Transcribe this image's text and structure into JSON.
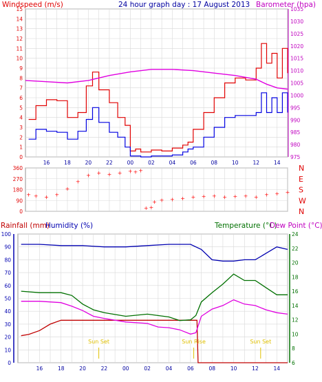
{
  "header": {
    "left": "Windspeed (m/s)",
    "center": "24 hour graph day : 17 August 2013",
    "right": "Barometer (hpa)"
  },
  "bottom_header": {
    "rainfall": "Rainfall (mm)",
    "humidity": "Humidity (%)",
    "temperature": "Temperature (°C)",
    "dewpoint": "Dew Point (°C)"
  },
  "colors": {
    "wind_gust": "#e00000",
    "wind_avg": "#0000e0",
    "barometer": "#e000e0",
    "direction": "#ff0000",
    "rain": "#c00000",
    "humidity": "#0000b0",
    "temperature": "#007000",
    "dewpoint": "#e000e0",
    "sun": "#e0c000",
    "grid": "#d8d8d8"
  },
  "chart_data": [
    {
      "type": "line",
      "id": "wind_baro",
      "title": "24 hour graph day : 17 August 2013",
      "x_ticks": [
        "16",
        "18",
        "20",
        "22",
        "00",
        "02",
        "04",
        "06",
        "08",
        "10",
        "12",
        "14",
        "16",
        "18",
        "20",
        "22",
        "00"
      ],
      "xlim": [
        14,
        39
      ],
      "ylabel_left": "Windspeed (m/s)",
      "ylim_left": [
        0,
        15
      ],
      "yticks_left": [
        "0",
        "1",
        "2",
        "3",
        "4",
        "5",
        "6",
        "7",
        "8",
        "9",
        "10",
        "11",
        "12",
        "13",
        "14",
        "15"
      ],
      "ylabel_right": "Barometer (hpa)",
      "ylim_right": [
        975,
        1035
      ],
      "yticks_right": [
        "975",
        "980",
        "985",
        "990",
        "995",
        "1000",
        "1005",
        "1010",
        "1015",
        "1020",
        "1025",
        "1030",
        "1035"
      ],
      "series": [
        {
          "name": "gust",
          "axis": "left",
          "x": [
            14.3,
            15,
            16,
            17,
            18,
            19,
            19.8,
            20.4,
            21,
            22,
            22.8,
            23.5,
            24,
            24.5,
            25,
            26,
            27,
            28,
            29,
            29.5,
            30,
            31,
            32,
            33,
            34,
            35,
            36,
            36.5,
            37,
            37.5,
            38,
            38.5,
            39
          ],
          "y": [
            3.8,
            5.2,
            5.8,
            5.7,
            4.0,
            4.5,
            7.2,
            8.6,
            6.8,
            5.5,
            4.0,
            3.2,
            0.6,
            0.8,
            0.5,
            0.7,
            0.6,
            0.9,
            1.2,
            1.5,
            2.8,
            4.5,
            6.0,
            7.5,
            8.0,
            7.8,
            9.0,
            11.5,
            9.5,
            10.5,
            8.0,
            11.0,
            8.5
          ]
        },
        {
          "name": "average",
          "axis": "left",
          "x": [
            14.3,
            15,
            16,
            17,
            18,
            19,
            19.8,
            20.4,
            21,
            22,
            22.8,
            23.5,
            24,
            24.5,
            25,
            26,
            27,
            28,
            29,
            29.5,
            30,
            31,
            32,
            33,
            34,
            35,
            36,
            36.5,
            37,
            37.5,
            38,
            38.5,
            39
          ],
          "y": [
            1.8,
            2.8,
            2.6,
            2.5,
            1.8,
            2.6,
            3.8,
            5.0,
            3.5,
            2.5,
            2.0,
            1.0,
            0.1,
            0.1,
            0.0,
            0.1,
            0.1,
            0.2,
            0.5,
            0.8,
            1.0,
            2.0,
            3.0,
            4.0,
            4.2,
            4.2,
            4.5,
            6.5,
            4.5,
            6.0,
            4.5,
            6.5,
            4.5
          ]
        },
        {
          "name": "barometer",
          "axis": "right",
          "x": [
            14,
            16,
            18,
            20,
            22,
            24,
            26,
            28,
            30,
            32,
            34,
            36,
            37,
            38,
            39
          ],
          "y": [
            1006.0,
            1005.5,
            1005.0,
            1006.0,
            1008.0,
            1009.5,
            1010.5,
            1010.5,
            1010.0,
            1009.0,
            1008.0,
            1006.5,
            1004.5,
            1003.0,
            1002.5
          ]
        }
      ]
    },
    {
      "type": "scatter",
      "id": "wind_direction",
      "ylim": [
        0,
        360
      ],
      "yticks": [
        "0",
        "90",
        "180",
        "270",
        "360"
      ],
      "compass": [
        "N",
        "W",
        "S",
        "E",
        "N"
      ],
      "series": [
        {
          "name": "direction",
          "x": [
            14.3,
            15,
            16,
            17,
            18,
            19,
            20,
            21,
            22,
            23,
            24,
            24.5,
            25,
            25.5,
            26,
            26.3,
            27,
            28,
            29,
            30,
            31,
            32,
            33,
            34,
            35,
            36,
            37,
            38,
            39
          ],
          "y": [
            140,
            130,
            120,
            140,
            190,
            250,
            300,
            320,
            310,
            320,
            335,
            330,
            340,
            30,
            35,
            80,
            95,
            100,
            110,
            120,
            125,
            130,
            120,
            125,
            130,
            120,
            140,
            150,
            160
          ]
        }
      ]
    },
    {
      "type": "line",
      "id": "temp_hum_rain",
      "ylabel_left": "Rainfall (mm)",
      "ylabel_left2": "Humidity (%)",
      "ylim_left": [
        0,
        100
      ],
      "yticks_left": [
        "0",
        "10",
        "20",
        "30",
        "40",
        "50",
        "60",
        "70",
        "80",
        "90",
        "100"
      ],
      "ylabel_right": "Temperature (°C)",
      "ylim_right": [
        6,
        24
      ],
      "yticks_right": [
        "6",
        "8",
        "10",
        "12",
        "14",
        "16",
        "18",
        "20",
        "22",
        "24"
      ],
      "annotations": [
        {
          "text": "Sun Set",
          "x": 21.5
        },
        {
          "text": "Sun Rise",
          "x": 30.3
        },
        {
          "text": "Sun Set",
          "x": 36.5
        }
      ],
      "series": [
        {
          "name": "rainfall",
          "axis": "left",
          "x": [
            14.3,
            15,
            16,
            17,
            18,
            19,
            20,
            21,
            22,
            23,
            24,
            25,
            26,
            27,
            28,
            29,
            30,
            30.6,
            30.7,
            31,
            32,
            34,
            36,
            38,
            39
          ],
          "y": [
            21,
            22,
            25,
            30,
            33,
            33,
            33,
            33,
            33,
            33,
            33,
            33,
            33,
            33,
            33,
            33,
            33,
            33,
            0,
            0,
            0,
            0,
            0,
            0,
            0
          ]
        },
        {
          "name": "humidity",
          "axis": "left",
          "x": [
            14.3,
            16,
            18,
            20,
            22,
            24,
            26,
            28,
            30,
            31,
            32,
            33,
            34,
            35,
            36,
            37,
            38,
            39
          ],
          "y": [
            92,
            92,
            91,
            91,
            90,
            90,
            91,
            92,
            92,
            88,
            80,
            79,
            79,
            80,
            80,
            85,
            90,
            88
          ]
        },
        {
          "name": "temperature",
          "axis": "right",
          "x": [
            14.3,
            16,
            18,
            19,
            20,
            21,
            22,
            24,
            26,
            28,
            29,
            30,
            30.5,
            31,
            32,
            33,
            34,
            35,
            36,
            37,
            38,
            39
          ],
          "y": [
            16.0,
            15.8,
            15.8,
            15.4,
            14.2,
            13.4,
            13.0,
            12.5,
            12.8,
            12.4,
            11.9,
            12.0,
            12.6,
            14.5,
            15.8,
            17.0,
            18.4,
            17.5,
            17.5,
            16.5,
            15.5,
            15.5
          ]
        },
        {
          "name": "dewpoint",
          "axis": "right",
          "x": [
            14.3,
            16,
            18,
            19,
            20,
            21,
            22,
            24,
            26,
            27,
            28,
            29,
            30,
            30.5,
            31,
            32,
            33,
            34,
            35,
            36,
            37,
            38,
            39
          ],
          "y": [
            14.6,
            14.6,
            14.4,
            13.9,
            13.3,
            12.5,
            12.2,
            11.7,
            11.5,
            11.0,
            10.9,
            10.6,
            10.0,
            10.2,
            12.5,
            13.5,
            14.0,
            14.8,
            14.2,
            14.0,
            13.4,
            13.0,
            12.8
          ]
        }
      ]
    }
  ]
}
